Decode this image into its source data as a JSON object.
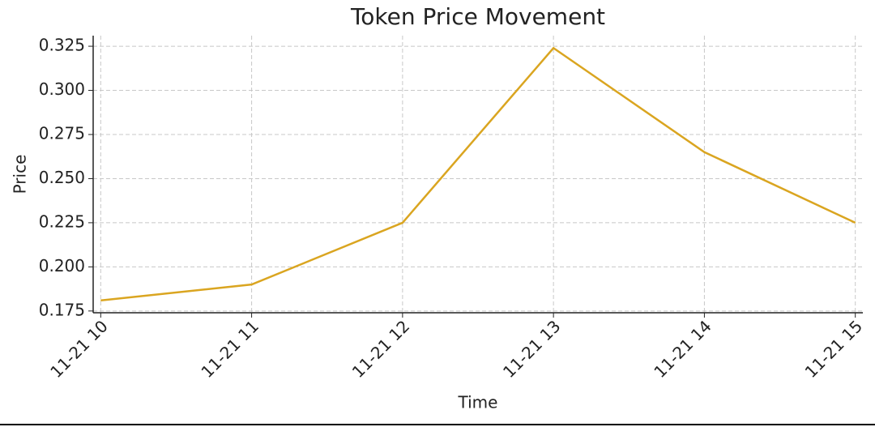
{
  "chart_data": {
    "type": "line",
    "title": "Token Price Movement",
    "xlabel": "Time",
    "ylabel": "Price",
    "categories": [
      "11-21 10",
      "11-21 11",
      "11-21 12",
      "11-21 13",
      "11-21 14",
      "11-21 15"
    ],
    "series": [
      {
        "name": "Price",
        "color": "#daa520",
        "values": [
          0.181,
          0.19,
          0.225,
          0.324,
          0.265,
          0.225
        ]
      }
    ],
    "ylim": [
      0.174,
      0.331
    ],
    "yticks": [
      0.175,
      {
        "value": 0.2,
        "label": "0.200"
      },
      0.225,
      {
        "value": 0.25,
        "label": "0.250"
      },
      0.275,
      {
        "value": 0.3,
        "label": "0.300"
      },
      0.325
    ],
    "grid": true
  }
}
